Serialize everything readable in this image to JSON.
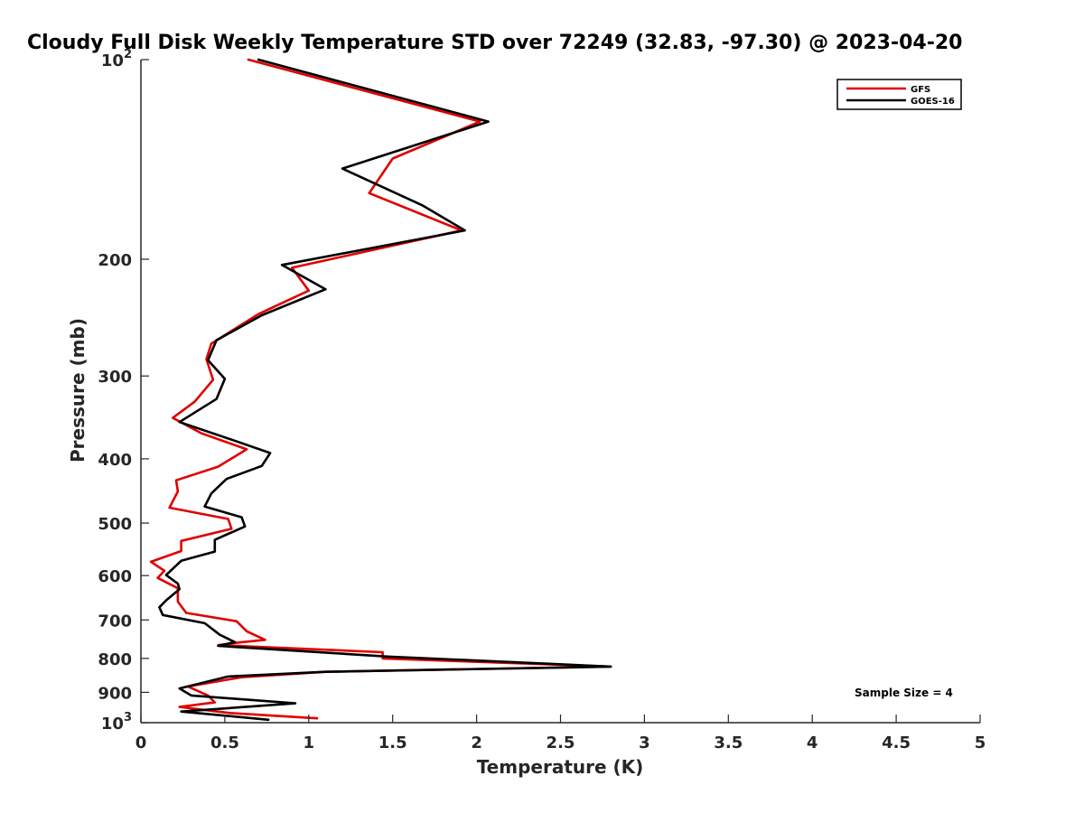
{
  "chart_data": {
    "type": "line",
    "title": "Cloudy Full Disk Weekly Temperature STD over 72249 (32.83, -97.30) @ 2023-04-20",
    "xlabel": "Temperature (K)",
    "ylabel": "Pressure (mb)",
    "xlim": [
      0,
      5
    ],
    "ylim": [
      100,
      1000
    ],
    "yscale": "log",
    "y_reversed": true,
    "xticks": [
      0,
      0.5,
      1,
      1.5,
      2,
      2.5,
      3,
      3.5,
      4,
      4.5,
      5
    ],
    "xtick_labels": [
      "0",
      "0.5",
      "1",
      "1.5",
      "2",
      "2.5",
      "3",
      "3.5",
      "4",
      "4.5",
      "5"
    ],
    "yticks": [
      {
        "value": 100,
        "label": "10",
        "sup": "2"
      },
      {
        "value": 200,
        "label": "200",
        "sup": ""
      },
      {
        "value": 300,
        "label": "300",
        "sup": ""
      },
      {
        "value": 400,
        "label": "400",
        "sup": ""
      },
      {
        "value": 500,
        "label": "500",
        "sup": ""
      },
      {
        "value": 600,
        "label": "600",
        "sup": ""
      },
      {
        "value": 700,
        "label": "700",
        "sup": ""
      },
      {
        "value": 800,
        "label": "800",
        "sup": ""
      },
      {
        "value": 900,
        "label": "900",
        "sup": ""
      },
      {
        "value": 1000,
        "label": "10",
        "sup": "3"
      }
    ],
    "grid": false,
    "legend_position": "top-right",
    "annotation": "Sample Size = 4",
    "series": [
      {
        "name": "GFS",
        "color": "#e00000",
        "points": [
          [
            0.64,
            100
          ],
          [
            2.02,
            124
          ],
          [
            1.5,
            141
          ],
          [
            1.36,
            159
          ],
          [
            1.91,
            181
          ],
          [
            0.9,
            206
          ],
          [
            1.0,
            223
          ],
          [
            0.7,
            242
          ],
          [
            0.42,
            268
          ],
          [
            0.39,
            283
          ],
          [
            0.43,
            304
          ],
          [
            0.32,
            328
          ],
          [
            0.19,
            347
          ],
          [
            0.36,
            366
          ],
          [
            0.63,
            387
          ],
          [
            0.46,
            411
          ],
          [
            0.21,
            431
          ],
          [
            0.22,
            448
          ],
          [
            0.17,
            474
          ],
          [
            0.52,
            493
          ],
          [
            0.54,
            510
          ],
          [
            0.24,
            532
          ],
          [
            0.24,
            551
          ],
          [
            0.06,
            572
          ],
          [
            0.14,
            590
          ],
          [
            0.1,
            605
          ],
          [
            0.22,
            627
          ],
          [
            0.22,
            657
          ],
          [
            0.27,
            683
          ],
          [
            0.57,
            703
          ],
          [
            0.63,
            728
          ],
          [
            0.74,
            750
          ],
          [
            0.58,
            757
          ],
          [
            0.46,
            764
          ],
          [
            1.44,
            783
          ],
          [
            1.44,
            800
          ],
          [
            2.8,
            823
          ],
          [
            1.1,
            838
          ],
          [
            0.6,
            854
          ],
          [
            0.28,
            882
          ],
          [
            0.4,
            910
          ],
          [
            0.44,
            932
          ],
          [
            0.23,
            947
          ],
          [
            0.53,
            967
          ],
          [
            1.05,
            985
          ]
        ]
      },
      {
        "name": "GOES-16",
        "color": "#000000",
        "points": [
          [
            0.7,
            100
          ],
          [
            2.07,
            124
          ],
          [
            1.2,
            146
          ],
          [
            1.68,
            166
          ],
          [
            1.93,
            181
          ],
          [
            0.84,
            204
          ],
          [
            1.1,
            222
          ],
          [
            0.72,
            243
          ],
          [
            0.45,
            265
          ],
          [
            0.4,
            284
          ],
          [
            0.5,
            303
          ],
          [
            0.45,
            325
          ],
          [
            0.23,
            352
          ],
          [
            0.55,
            375
          ],
          [
            0.77,
            392
          ],
          [
            0.72,
            410
          ],
          [
            0.51,
            429
          ],
          [
            0.42,
            451
          ],
          [
            0.38,
            472
          ],
          [
            0.6,
            490
          ],
          [
            0.62,
            506
          ],
          [
            0.44,
            530
          ],
          [
            0.44,
            552
          ],
          [
            0.24,
            570
          ],
          [
            0.15,
            599
          ],
          [
            0.22,
            617
          ],
          [
            0.23,
            629
          ],
          [
            0.15,
            654
          ],
          [
            0.11,
            670
          ],
          [
            0.13,
            688
          ],
          [
            0.38,
            708
          ],
          [
            0.47,
            737
          ],
          [
            0.56,
            756
          ],
          [
            0.46,
            766
          ],
          [
            1.48,
            795
          ],
          [
            2.8,
            823
          ],
          [
            1.1,
            838
          ],
          [
            0.52,
            852
          ],
          [
            0.23,
            888
          ],
          [
            0.3,
            910
          ],
          [
            0.92,
            935
          ],
          [
            0.24,
            962
          ],
          [
            0.76,
            990
          ]
        ]
      }
    ]
  }
}
